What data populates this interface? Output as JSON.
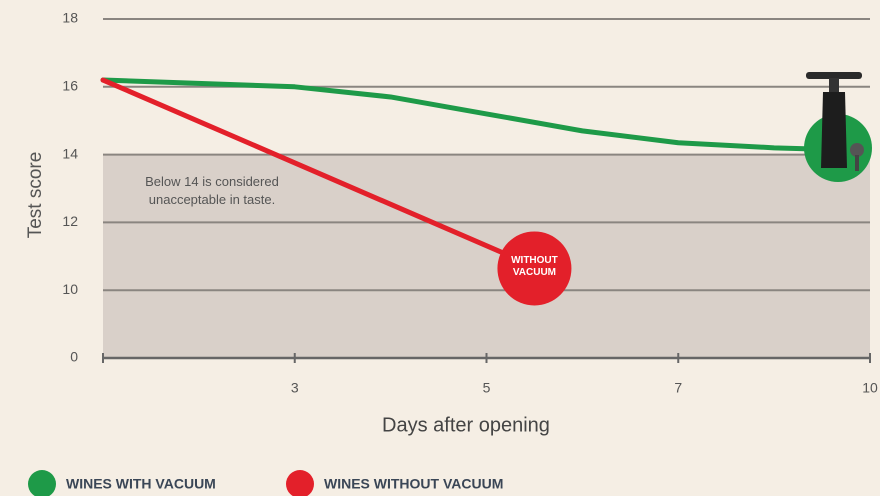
{
  "chart_data": {
    "type": "line",
    "x_label": "Days after opening",
    "y_label": "Test score",
    "xlim": [
      1,
      10
    ],
    "xticks": [
      3,
      5,
      7,
      10
    ],
    "ylim": [
      0,
      18
    ],
    "yticks": [
      0,
      10,
      12,
      14,
      16,
      18
    ],
    "grid": true,
    "shaded_below": 14,
    "shaded_color": "#d9d0c9",
    "annotation": "Below 14 is considered unacceptable in taste.",
    "marker_label": "WITHOUT VACUUM",
    "series": [
      {
        "name": "WINES WITH VACUUM",
        "color": "#1e9a48",
        "x": [
          1,
          3,
          4,
          5,
          6,
          7,
          8.5,
          9.4
        ],
        "values": [
          16.2,
          16.0,
          15.7,
          15.2,
          14.7,
          14.35,
          14.2,
          14.15
        ]
      },
      {
        "name": "WINES WITHOUT VACUUM",
        "color": "#e3202a",
        "x": [
          1,
          5.5
        ],
        "values": [
          16.2,
          10.7
        ]
      }
    ]
  }
}
